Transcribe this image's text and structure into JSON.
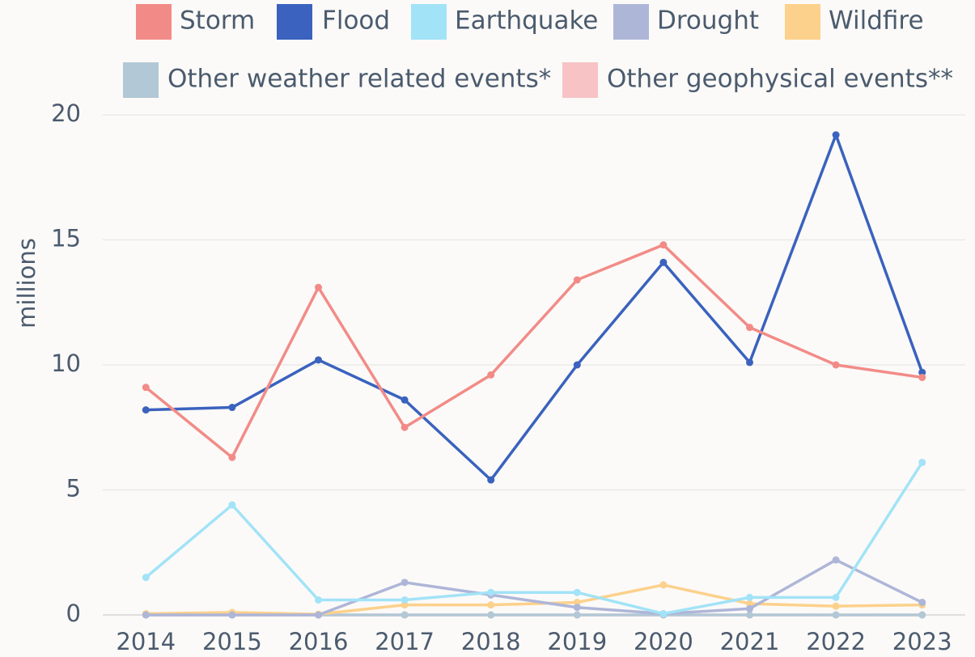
{
  "chart_data": {
    "type": "line",
    "y_label": "millions",
    "categories": [
      "2014",
      "2015",
      "2016",
      "2017",
      "2018",
      "2019",
      "2020",
      "2021",
      "2022",
      "2023"
    ],
    "series": [
      {
        "name": "Storm",
        "color": "#f28b87",
        "values": [
          9.1,
          6.3,
          13.1,
          7.5,
          9.6,
          13.4,
          14.8,
          11.5,
          10.0,
          9.5
        ]
      },
      {
        "name": "Flood",
        "color": "#3a62be",
        "values": [
          8.2,
          8.3,
          10.2,
          8.6,
          5.4,
          10.0,
          14.1,
          10.1,
          19.2,
          9.7
        ]
      },
      {
        "name": "Earthquake",
        "color": "#a2e3f7",
        "values": [
          1.5,
          4.4,
          0.6,
          0.6,
          0.9,
          0.9,
          0.05,
          0.7,
          0.7,
          6.1
        ]
      },
      {
        "name": "Drought",
        "color": "#aeb6d8",
        "values": [
          0,
          0,
          0,
          1.3,
          0.8,
          0.3,
          0.05,
          0.25,
          2.2,
          0.5
        ]
      },
      {
        "name": "Wildfire",
        "color": "#fcd18b",
        "values": [
          0.05,
          0.1,
          0.03,
          0.4,
          0.4,
          0.5,
          1.2,
          0.45,
          0.35,
          0.4
        ]
      },
      {
        "name": "Other weather related events*",
        "color": "#b2c8d6",
        "values": [
          0,
          0,
          0,
          0,
          0,
          0,
          0,
          0,
          0,
          0
        ]
      },
      {
        "name": "Other geophysical events**",
        "color": "#f7c3c4",
        "values": [
          0,
          0,
          0,
          0,
          0,
          0,
          0,
          0,
          0,
          0
        ]
      }
    ],
    "ylim": [
      0,
      20
    ],
    "yticks": [
      0,
      5,
      10,
      15,
      20
    ],
    "grid": true
  }
}
